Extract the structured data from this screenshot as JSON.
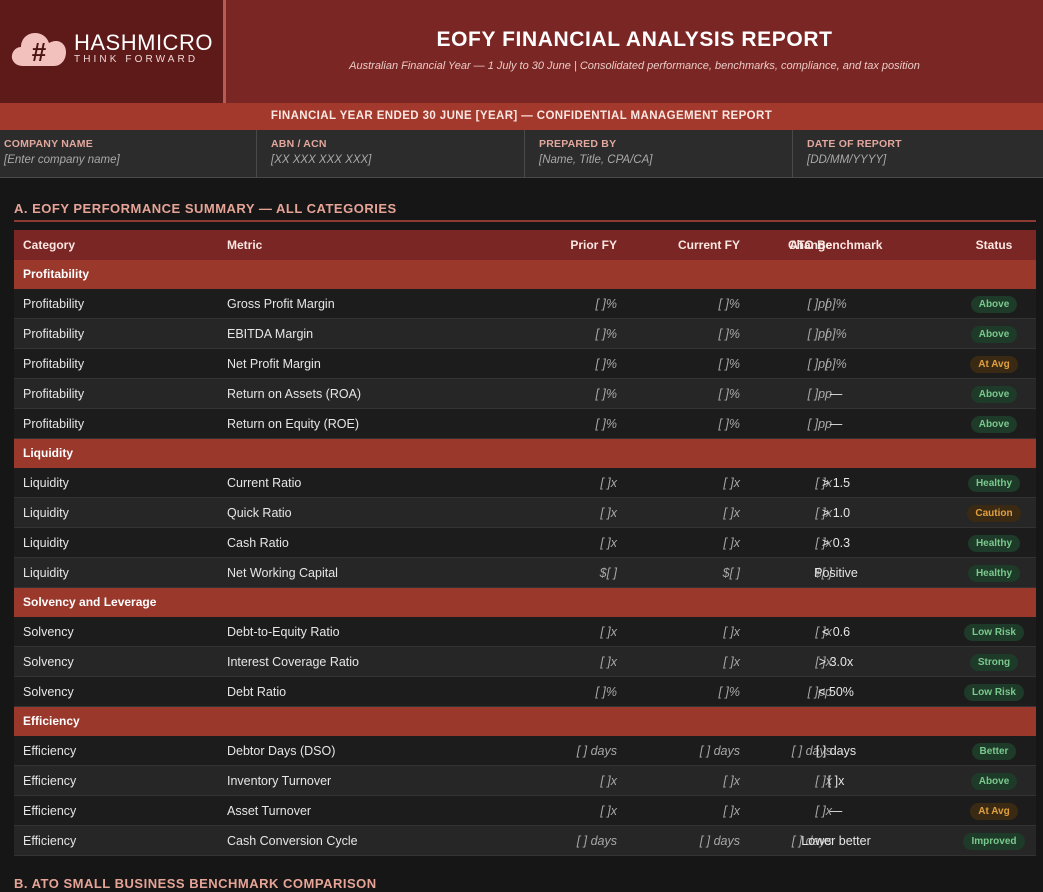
{
  "header": {
    "logo_word": "HASHMICRO",
    "logo_tagline": "THINK FORWARD",
    "title": "EOFY FINANCIAL ANALYSIS REPORT",
    "subtitle": "Australian Financial Year — 1 July to 30 June | Consolidated performance, benchmarks, compliance, and tax position",
    "banner": "FINANCIAL YEAR ENDED 30 JUNE [YEAR] — CONFIDENTIAL MANAGEMENT REPORT"
  },
  "info": [
    {
      "label": "COMPANY NAME",
      "value": "[Enter company name]"
    },
    {
      "label": "ABN / ACN",
      "value": "[XX XXX XXX XXX]"
    },
    {
      "label": "PREPARED BY",
      "value": "[Name, Title, CPA/CA]"
    },
    {
      "label": "DATE OF REPORT",
      "value": "[DD/MM/YYYY]"
    }
  ],
  "section_a": {
    "title": "A. EOFY PERFORMANCE SUMMARY — ALL CATEGORIES",
    "columns": {
      "category": "Category",
      "metric": "Metric",
      "prior": "Prior FY",
      "current": "Current FY",
      "change": "Change",
      "benchmark": "ATO Benchmark",
      "status": "Status"
    },
    "groups": [
      {
        "name": "Profitability",
        "rows": [
          {
            "category": "Profitability",
            "metric": "Gross Profit Margin",
            "prior": "[ ]%",
            "current": "[ ]%",
            "change": "[ ]pp",
            "benchmark": "[ ]%",
            "benchmark_muted": true,
            "status": "Above",
            "tone": "green"
          },
          {
            "category": "Profitability",
            "metric": "EBITDA Margin",
            "prior": "[ ]%",
            "current": "[ ]%",
            "change": "[ ]pp",
            "benchmark": "[ ]%",
            "benchmark_muted": true,
            "status": "Above",
            "tone": "green"
          },
          {
            "category": "Profitability",
            "metric": "Net Profit Margin",
            "prior": "[ ]%",
            "current": "[ ]%",
            "change": "[ ]pp",
            "benchmark": "[ ]%",
            "benchmark_muted": true,
            "status": "At Avg",
            "tone": "amber"
          },
          {
            "category": "Profitability",
            "metric": "Return on Assets (ROA)",
            "prior": "[ ]%",
            "current": "[ ]%",
            "change": "[ ]pp",
            "benchmark": "—",
            "benchmark_muted": false,
            "status": "Above",
            "tone": "green"
          },
          {
            "category": "Profitability",
            "metric": "Return on Equity (ROE)",
            "prior": "[ ]%",
            "current": "[ ]%",
            "change": "[ ]pp",
            "benchmark": "—",
            "benchmark_muted": false,
            "status": "Above",
            "tone": "green"
          }
        ]
      },
      {
        "name": "Liquidity",
        "rows": [
          {
            "category": "Liquidity",
            "metric": "Current Ratio",
            "prior": "[ ]x",
            "current": "[ ]x",
            "change": "[ ]x",
            "benchmark": "> 1.5",
            "benchmark_muted": false,
            "status": "Healthy",
            "tone": "green"
          },
          {
            "category": "Liquidity",
            "metric": "Quick Ratio",
            "prior": "[ ]x",
            "current": "[ ]x",
            "change": "[ ]x",
            "benchmark": "> 1.0",
            "benchmark_muted": false,
            "status": "Caution",
            "tone": "amber"
          },
          {
            "category": "Liquidity",
            "metric": "Cash Ratio",
            "prior": "[ ]x",
            "current": "[ ]x",
            "change": "[ ]x",
            "benchmark": "> 0.3",
            "benchmark_muted": false,
            "status": "Healthy",
            "tone": "green"
          },
          {
            "category": "Liquidity",
            "metric": "Net Working Capital",
            "prior": "$[ ]",
            "current": "$[ ]",
            "change": "$[ ]",
            "benchmark": "Positive",
            "benchmark_muted": false,
            "status": "Healthy",
            "tone": "green"
          }
        ]
      },
      {
        "name": "Solvency and Leverage",
        "rows": [
          {
            "category": "Solvency",
            "metric": "Debt-to-Equity Ratio",
            "prior": "[ ]x",
            "current": "[ ]x",
            "change": "[ ]x",
            "benchmark": "< 0.6",
            "benchmark_muted": false,
            "status": "Low Risk",
            "tone": "green"
          },
          {
            "category": "Solvency",
            "metric": "Interest Coverage Ratio",
            "prior": "[ ]x",
            "current": "[ ]x",
            "change": "[ ]x",
            "benchmark": "> 3.0x",
            "benchmark_muted": false,
            "status": "Strong",
            "tone": "green"
          },
          {
            "category": "Solvency",
            "metric": "Debt Ratio",
            "prior": "[ ]%",
            "current": "[ ]%",
            "change": "[ ]pp",
            "benchmark": "< 50%",
            "benchmark_muted": false,
            "status": "Low Risk",
            "tone": "green"
          }
        ]
      },
      {
        "name": "Efficiency",
        "rows": [
          {
            "category": "Efficiency",
            "metric": "Debtor Days (DSO)",
            "prior": "[ ] days",
            "current": "[ ] days",
            "change": "[ ] days",
            "benchmark": "[ ] days",
            "benchmark_muted": false,
            "status": "Better",
            "tone": "green"
          },
          {
            "category": "Efficiency",
            "metric": "Inventory Turnover",
            "prior": "[ ]x",
            "current": "[ ]x",
            "change": "[ ]x",
            "benchmark": "[ ]x",
            "benchmark_muted": false,
            "status": "Above",
            "tone": "green"
          },
          {
            "category": "Efficiency",
            "metric": "Asset Turnover",
            "prior": "[ ]x",
            "current": "[ ]x",
            "change": "[ ]x",
            "benchmark": "—",
            "benchmark_muted": false,
            "status": "At Avg",
            "tone": "amber"
          },
          {
            "category": "Efficiency",
            "metric": "Cash Conversion Cycle",
            "prior": "[ ] days",
            "current": "[ ] days",
            "change": "[ ] days",
            "benchmark": "Lower better",
            "benchmark_muted": false,
            "status": "Improved",
            "tone": "green"
          }
        ]
      }
    ]
  },
  "section_b": {
    "title": "B. ATO SMALL BUSINESS BENCHMARK COMPARISON"
  },
  "colors": {
    "header_bg": "#7a2624",
    "banner_bg": "#a3392c",
    "accent_text": "#e6a497",
    "status_green": "#79c98d",
    "status_amber": "#e0a040"
  }
}
